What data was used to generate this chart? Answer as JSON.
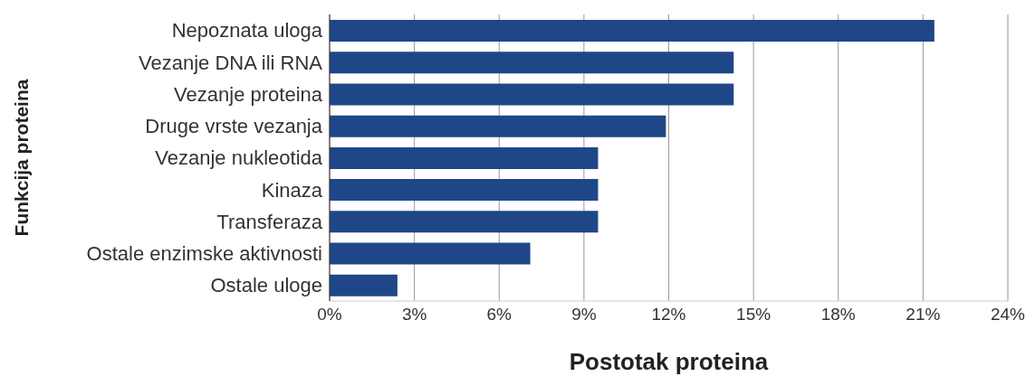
{
  "chart_data": {
    "type": "bar",
    "orientation": "horizontal",
    "xlabel": "Postotak proteina",
    "ylabel": "Funkcija proteina",
    "categories": [
      "Nepoznata uloga",
      "Vezanje DNA ili RNA",
      "Vezanje proteina",
      "Druge vrste vezanja",
      "Vezanje nukleotida",
      "Kinaza",
      "Transferaza",
      "Ostale enzimske aktivnosti",
      "Ostale uloge"
    ],
    "values": [
      21.4,
      14.3,
      14.3,
      11.9,
      9.5,
      9.5,
      9.5,
      7.1,
      2.4
    ],
    "color": "#1f4788",
    "xlim": [
      0,
      24
    ],
    "xticks": [
      {
        "value": 0,
        "label": "0%"
      },
      {
        "value": 3,
        "label": "3%"
      },
      {
        "value": 6,
        "label": "6%"
      },
      {
        "value": 9,
        "label": "9%"
      },
      {
        "value": 12,
        "label": "12%"
      },
      {
        "value": 15,
        "label": "15%"
      },
      {
        "value": 18,
        "label": "18%"
      },
      {
        "value": 21,
        "label": "21%"
      },
      {
        "value": 24,
        "label": "24%"
      }
    ],
    "grid": "x",
    "legend": false
  }
}
